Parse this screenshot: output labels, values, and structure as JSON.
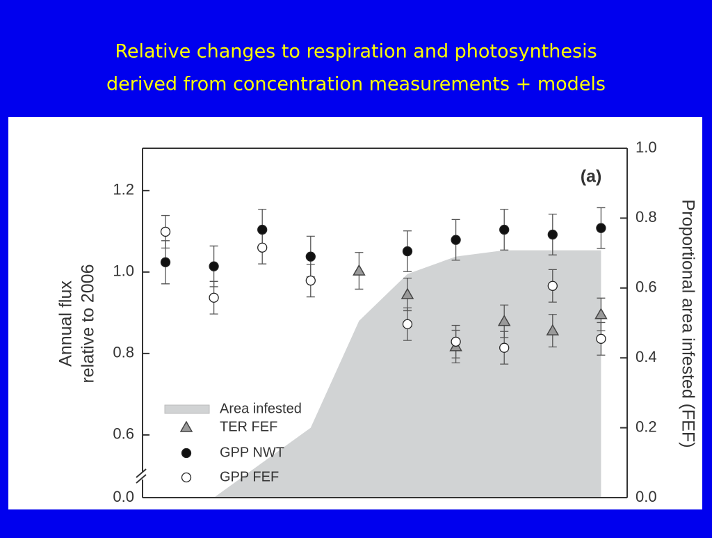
{
  "title_lines": [
    "Relative changes to respiration and photosynthesis",
    "derived from concentration measurements + models"
  ],
  "chart_data": {
    "type": "scatter",
    "annotation": "(a)",
    "ylabel": [
      "Annual flux",
      "relative to 2006"
    ],
    "y2label": "Proportional area infested (FEF)",
    "categories": [
      null,
      null,
      null,
      null,
      null,
      null,
      null,
      null,
      null,
      null
    ],
    "ylim": [
      0.446,
      1.304
    ],
    "yticks": [
      0.6,
      0.8,
      {
        "value": 1.0,
        "label": "1.0"
      },
      1.2
    ],
    "y_break_label": "0.0",
    "y2lim": [
      0,
      1
    ],
    "y2ticks": [
      {
        "value": 0,
        "label": "0.0"
      },
      0.2,
      0.4,
      0.6,
      0.8,
      {
        "value": 1.0,
        "label": "1.0"
      }
    ],
    "series": [
      {
        "name": "Area infested",
        "kind": "area",
        "axis": "y2",
        "color": "#d1d3d4",
        "values": [
          0,
          0,
          0.1,
          0.2,
          0.506,
          0.64,
          0.69,
          0.708,
          0.708,
          0.708
        ]
      },
      {
        "name": "TER FEF",
        "kind": "triangle",
        "color": "#9a9a9a",
        "values": [
          null,
          null,
          null,
          null,
          1.003,
          0.945,
          0.817,
          0.879,
          0.856,
          0.896
        ],
        "errors": [
          null,
          null,
          null,
          null,
          0.045,
          0.04,
          0.04,
          0.04,
          0.04,
          0.04
        ]
      },
      {
        "name": "GPP NWT",
        "kind": "filled",
        "color": "#111111",
        "values": [
          1.024,
          1.014,
          1.104,
          1.038,
          null,
          1.051,
          1.079,
          1.104,
          1.092,
          1.108
        ],
        "errors": [
          0.053,
          0.05,
          0.05,
          0.05,
          null,
          0.05,
          0.05,
          0.05,
          0.05,
          0.05
        ]
      },
      {
        "name": "GPP FEF",
        "kind": "open",
        "color": "#ffffff",
        "values": [
          1.099,
          0.937,
          1.06,
          0.979,
          null,
          0.872,
          0.829,
          0.814,
          0.966,
          0.836
        ],
        "errors": [
          0.04,
          0.04,
          0.04,
          0.04,
          null,
          0.04,
          0.04,
          0.04,
          0.04,
          0.04
        ]
      }
    ]
  }
}
